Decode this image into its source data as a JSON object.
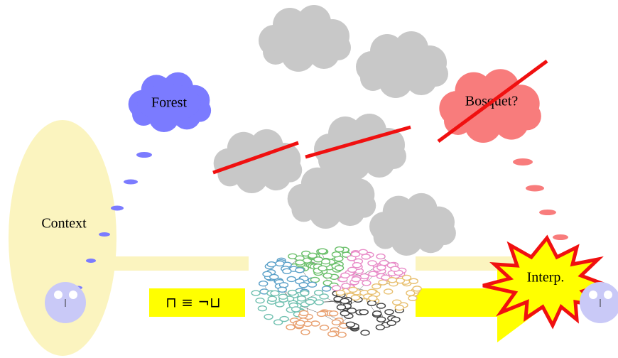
{
  "clouds": {
    "forest": "Forest",
    "bosquet": "Bosquet?"
  },
  "context": "Context",
  "formula": "⊓ ≡ ¬⊔",
  "interp": "Interp."
}
